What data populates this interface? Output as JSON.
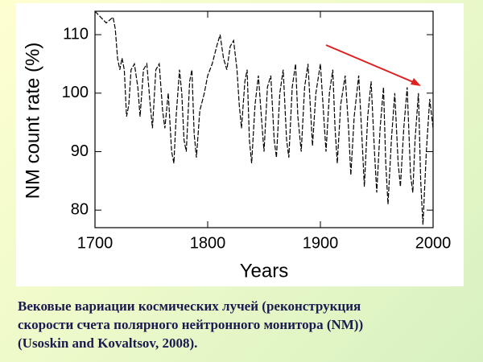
{
  "chart_data": {
    "type": "line",
    "x_label": "Years",
    "y_label": "NM count rate (%)",
    "x": [
      1700,
      1705,
      1710,
      1713,
      1716,
      1718,
      1720,
      1722,
      1724,
      1726,
      1728,
      1730,
      1732,
      1735,
      1738,
      1740,
      1743,
      1746,
      1749,
      1751,
      1754,
      1757,
      1760,
      1762,
      1765,
      1768,
      1770,
      1772,
      1775,
      1777,
      1779,
      1781,
      1784,
      1786,
      1788,
      1790,
      1793,
      1797,
      1800,
      1804,
      1808,
      1811,
      1814,
      1817,
      1820,
      1823,
      1826,
      1828,
      1830,
      1833,
      1835,
      1837,
      1839,
      1842,
      1845,
      1848,
      1850,
      1853,
      1856,
      1859,
      1861,
      1864,
      1867,
      1870,
      1872,
      1875,
      1878,
      1880,
      1883,
      1886,
      1889,
      1891,
      1893,
      1896,
      1900,
      1903,
      1905,
      1908,
      1911,
      1913,
      1915,
      1918,
      1922,
      1925,
      1927,
      1930,
      1934,
      1937,
      1939,
      1942,
      1945,
      1948,
      1950,
      1953,
      1956,
      1958,
      1960,
      1963,
      1966,
      1969,
      1971,
      1974,
      1977,
      1980,
      1982,
      1984,
      1987,
      1989,
      1991,
      1994,
      1997,
      2000
    ],
    "series": [
      {
        "color": "#000000",
        "values": [
          114,
          113,
          112,
          112.5,
          113,
          111,
          106,
          104,
          106,
          104,
          96,
          98,
          104,
          105,
          101,
          96,
          104,
          105,
          98,
          94,
          104,
          105,
          97,
          94,
          100,
          90,
          88,
          96,
          104,
          100,
          92,
          90,
          102,
          104,
          93,
          89,
          97,
          100,
          103,
          105,
          108,
          110,
          106,
          104,
          108,
          109,
          104,
          98,
          94,
          102,
          104,
          92,
          88,
          98,
          103,
          95,
          90,
          101,
          103,
          92,
          89,
          100,
          104,
          92,
          89,
          101,
          105,
          96,
          90,
          101,
          105,
          98,
          91,
          100,
          105,
          96,
          90,
          100,
          104,
          94,
          88,
          98,
          103,
          94,
          86,
          96,
          103,
          92,
          84,
          96,
          102,
          90,
          83,
          94,
          101,
          88,
          81,
          92,
          100,
          88,
          84,
          94,
          101,
          86,
          83,
          92,
          100,
          85,
          77.5,
          90,
          99,
          94
        ]
      }
    ],
    "xlim": [
      1700,
      2000
    ],
    "ylim": [
      77,
      114
    ],
    "xticks": [
      1700,
      1800,
      1900,
      2000
    ],
    "yticks": [
      80,
      90,
      100,
      110
    ],
    "dashed": true
  },
  "caption": [
    "Вековые вариации космических лучей (реконструкция",
    "скорости счета полярного нейтронного монитора (NM))",
    "(Usoskin and Kovaltsov, 2008)."
  ]
}
